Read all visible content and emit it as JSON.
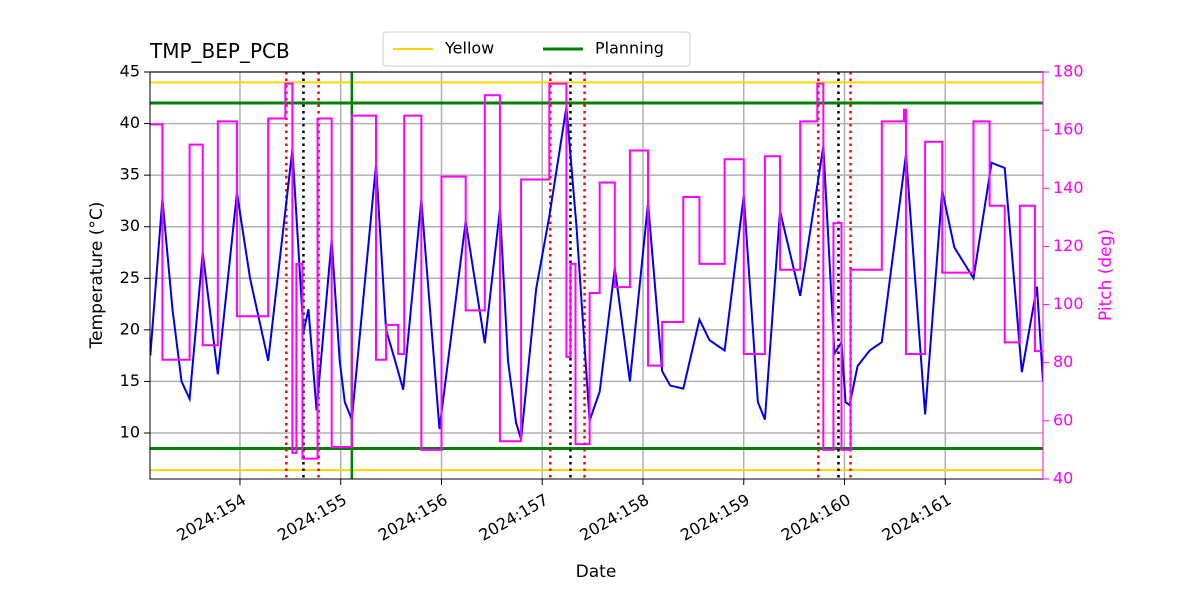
{
  "chart_data": {
    "type": "line",
    "title": "TMP_BEP_PCB",
    "xlabel": "Date",
    "ylabel": "Temperature (°C)",
    "y2label": "Pitch (deg)",
    "xlim": [
      153.107,
      161.97
    ],
    "ylim": [
      5.54,
      45
    ],
    "y2lim": [
      40,
      180
    ],
    "xticks": [
      {
        "value": 154,
        "label": "2024:154"
      },
      {
        "value": 155,
        "label": "2024:155"
      },
      {
        "value": 156,
        "label": "2024:156"
      },
      {
        "value": 157,
        "label": "2024:157"
      },
      {
        "value": 158,
        "label": "2024:158"
      },
      {
        "value": 159,
        "label": "2024:159"
      },
      {
        "value": 160,
        "label": "2024:160"
      },
      {
        "value": 161,
        "label": "2024:161"
      }
    ],
    "yticks": [
      10,
      15,
      20,
      25,
      30,
      35,
      40,
      45
    ],
    "y2ticks": [
      40,
      60,
      80,
      100,
      120,
      140,
      160,
      180
    ],
    "y2color": "#ff00ff",
    "grid": true,
    "legend": "upper center",
    "limits": [
      {
        "name": "Yellow",
        "color": "#ffd700",
        "values": [
          44,
          6.4
        ]
      },
      {
        "name": "Planning",
        "color": "#008000",
        "values": [
          42,
          8.5
        ]
      }
    ],
    "vlines": [
      {
        "color": "#008000",
        "style": "solid",
        "x": [
          155.11
        ]
      },
      {
        "color": "#ff0000",
        "style": "dotted",
        "x": [
          154.46,
          154.78,
          157.08,
          157.42,
          159.74,
          160.06
        ]
      },
      {
        "color": "#000000",
        "style": "dotted",
        "x": [
          154.63,
          157.28,
          159.94
        ]
      }
    ],
    "series": [
      {
        "color": "#0000ee",
        "axis": "y",
        "drawstyle": "default",
        "x": [
          153.11,
          153.23,
          153.33,
          153.42,
          153.5,
          153.63,
          153.78,
          153.97,
          154.1,
          154.28,
          154.52,
          154.63,
          154.68,
          154.76,
          154.91,
          154.99,
          155.04,
          155.11,
          155.35,
          155.45,
          155.54,
          155.62,
          155.8,
          155.98,
          156.24,
          156.43,
          156.58,
          156.66,
          156.74,
          156.79,
          156.94,
          157.07,
          157.24,
          157.34,
          157.47,
          157.57,
          157.72,
          157.87,
          158.05,
          158.19,
          158.27,
          158.4,
          158.56,
          158.66,
          158.81,
          159.0,
          159.14,
          159.21,
          159.36,
          159.56,
          159.79,
          159.9,
          159.97,
          160.01,
          160.05,
          160.13,
          160.25,
          160.37,
          160.61,
          160.8,
          160.97,
          161.09,
          161.28,
          161.46,
          161.59,
          161.76,
          161.91,
          161.97
        ],
        "values": [
          17.5,
          32.7,
          22,
          15,
          13.3,
          27.5,
          15.7,
          33.3,
          25,
          17,
          37.5,
          19.8,
          22,
          12.2,
          28.7,
          17,
          13,
          11.3,
          36,
          20,
          17,
          14.2,
          32.6,
          10.4,
          30.5,
          18.7,
          31.7,
          17,
          11,
          9.4,
          24,
          31,
          41.6,
          30,
          11.2,
          14,
          26,
          15,
          32.3,
          16,
          14.6,
          14.3,
          21,
          19,
          18,
          33,
          13,
          11.3,
          31.5,
          23.3,
          37.8,
          17.7,
          18.8,
          13,
          12.7,
          16.5,
          18,
          18.8,
          37,
          11.8,
          33.5,
          28,
          25,
          36.2,
          35.7,
          15.9,
          24.2,
          15
        ]
      },
      {
        "color": "#ff00ff",
        "axis": "y2",
        "drawstyle": "steps-post",
        "x": [
          153.11,
          153.23,
          153.5,
          153.63,
          153.78,
          153.97,
          154.28,
          154.45,
          154.52,
          154.56,
          154.62,
          154.77,
          154.91,
          155.11,
          155.35,
          155.45,
          155.57,
          155.63,
          155.8,
          156.0,
          156.24,
          156.43,
          156.58,
          156.79,
          157.07,
          157.24,
          157.28,
          157.33,
          157.47,
          157.57,
          157.72,
          157.87,
          158.05,
          158.19,
          158.4,
          158.56,
          158.81,
          159.0,
          159.21,
          159.36,
          159.56,
          159.73,
          159.79,
          159.89,
          159.97,
          160.06,
          160.37,
          160.59,
          160.61,
          160.8,
          160.97,
          161.28,
          161.44,
          161.59,
          161.74,
          161.89,
          161.97
        ],
        "values": [
          162,
          81,
          155,
          86,
          163,
          96,
          164,
          176,
          49,
          114,
          47,
          164,
          51,
          165,
          81,
          93,
          83,
          165,
          50,
          144,
          98,
          172,
          53,
          143,
          176,
          82,
          114,
          52,
          104,
          142,
          106,
          153,
          79,
          94,
          137,
          114,
          150,
          83,
          151,
          112,
          163,
          176,
          50,
          128,
          50,
          112,
          163,
          167,
          83,
          156,
          111,
          163,
          134,
          87,
          134,
          84,
          84
        ]
      }
    ]
  }
}
